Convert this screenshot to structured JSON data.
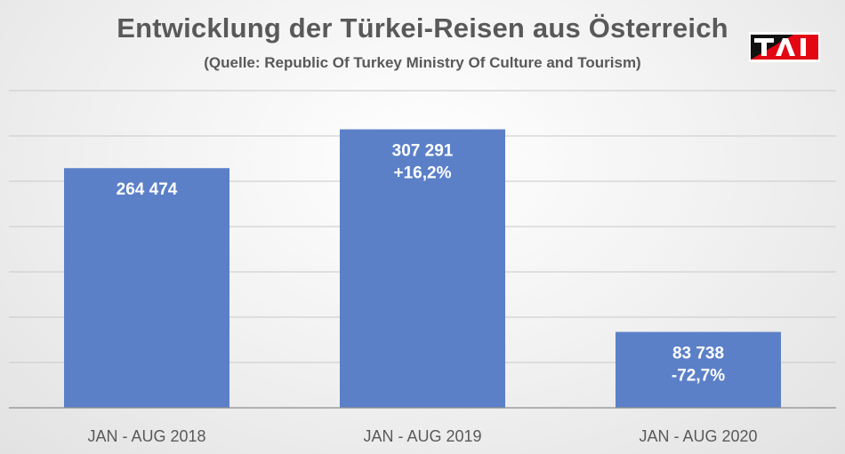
{
  "chart_data": {
    "type": "bar",
    "title": "Entwicklung der Türkei-Reisen aus Österreich",
    "subtitle": "(Quelle: Republic Of Turkey Ministry Of Culture and Tourism)",
    "categories": [
      "JAN - AUG 2018",
      "JAN - AUG 2019",
      "JAN - AUG 2020"
    ],
    "values": [
      264474,
      307291,
      83738
    ],
    "data_labels": [
      [
        "264 474"
      ],
      [
        "307 291",
        "+16,2%"
      ],
      [
        "83 738",
        "-72,7%"
      ]
    ],
    "ylim": [
      0,
      350000
    ],
    "gridline_step": 50000,
    "grid": true,
    "bar_color": "#5b80c8",
    "grid_color": "#c8c8c8"
  },
  "logo": {
    "text": "TAI",
    "colors": [
      "#e30613",
      "#111111"
    ]
  }
}
